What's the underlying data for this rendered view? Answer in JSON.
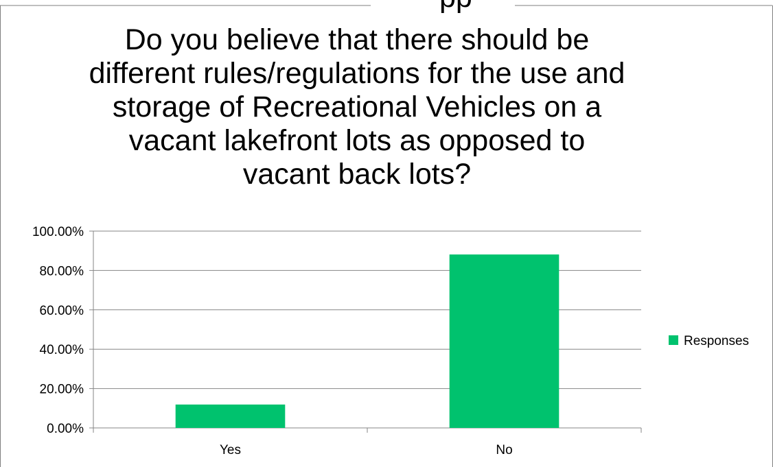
{
  "page_fragment": "pp",
  "chart_data": {
    "type": "bar",
    "title": "Do you believe that there should be\ndifferent rules/regulations for the use and\nstorage of Recreational Vehicles on a\nvacant lakefront lots as opposed to\nvacant back lots?",
    "categories": [
      "Yes",
      "No"
    ],
    "series": [
      {
        "name": "Responses",
        "values": [
          0.1188,
          0.8812
        ],
        "color": "#00c26e"
      }
    ],
    "ylim": [
      0,
      1
    ],
    "yticks": [
      0,
      0.2,
      0.4,
      0.6,
      0.8,
      1.0
    ],
    "ytick_labels": [
      "0.00%",
      "20.00%",
      "40.00%",
      "60.00%",
      "80.00%",
      "100.00%"
    ],
    "grid": true,
    "legend_position": "right",
    "xlabel": "",
    "ylabel": ""
  }
}
